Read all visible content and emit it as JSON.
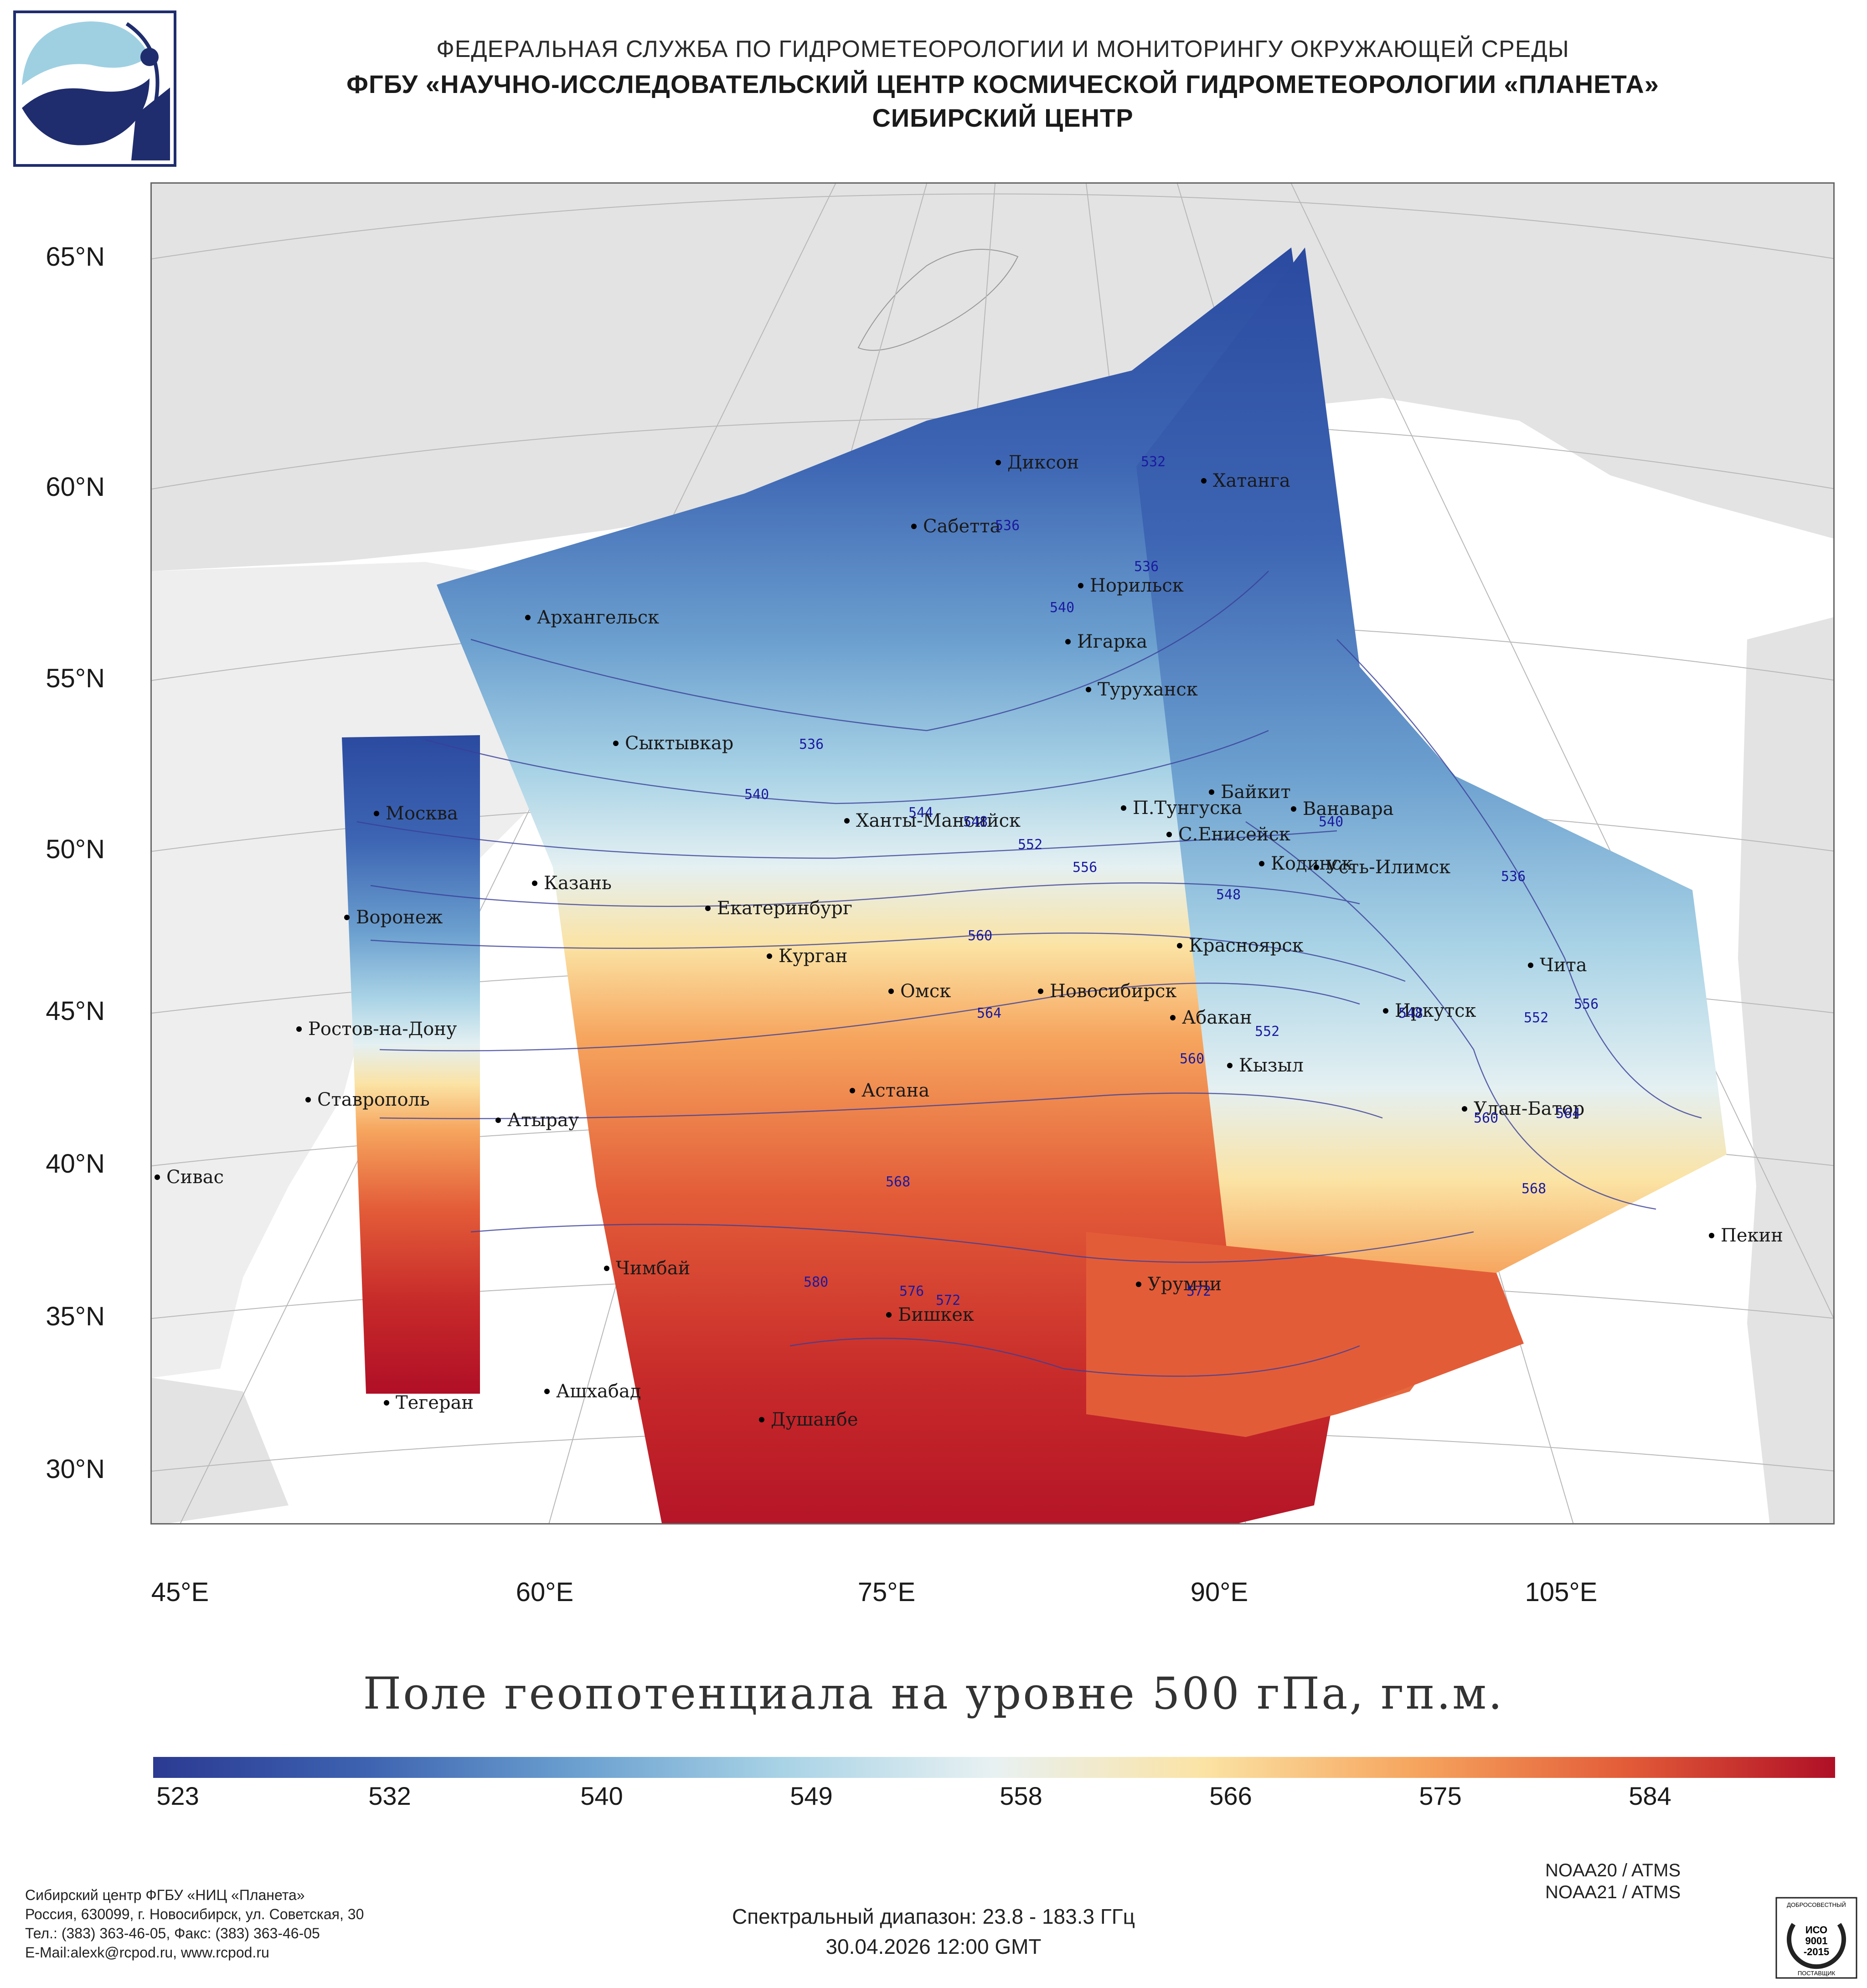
{
  "header": {
    "line1": "ФЕДЕРАЛЬНАЯ СЛУЖБА ПО ГИДРОМЕТЕОРОЛОГИИ И МОНИТОРИНГУ ОКРУЖАЮЩЕЙ СРЕДЫ",
    "line2": "ФГБУ «НАУЧНО-ИССЛЕДОВАТЕЛЬСКИЙ ЦЕНТР КОСМИЧЕСКОЙ ГИДРОМЕТЕОРОЛОГИИ «ПЛАНЕТА»",
    "line3": "СИБИРСКИЙ ЦЕНТР"
  },
  "map": {
    "lat_labels": [
      "65°N",
      "60°N",
      "55°N",
      "50°N",
      "45°N",
      "40°N",
      "35°N",
      "30°N"
    ],
    "lon_labels": [
      "45°E",
      "60°E",
      "75°E",
      "90°E",
      "105°E"
    ],
    "cities": [
      {
        "name": "Диксон"
      },
      {
        "name": "Хатанга"
      },
      {
        "name": "Сабетта"
      },
      {
        "name": "Норильск"
      },
      {
        "name": "Игарка"
      },
      {
        "name": "Туруханск"
      },
      {
        "name": "Архангельск"
      },
      {
        "name": "Сыктывкар"
      },
      {
        "name": "Москва"
      },
      {
        "name": "Ханты-Мансийск"
      },
      {
        "name": "Байкит"
      },
      {
        "name": "П.Тунгуска"
      },
      {
        "name": "Ванавара"
      },
      {
        "name": "С.Енисейск"
      },
      {
        "name": "Кодинск"
      },
      {
        "name": "Усть-Илимск"
      },
      {
        "name": "Казань"
      },
      {
        "name": "Екатеринбург"
      },
      {
        "name": "Воронеж"
      },
      {
        "name": "Курган"
      },
      {
        "name": "Красноярск"
      },
      {
        "name": "Омск"
      },
      {
        "name": "Новосибирск"
      },
      {
        "name": "Абакан"
      },
      {
        "name": "Иркутск"
      },
      {
        "name": "Чита"
      },
      {
        "name": "Ростов-на-Дону"
      },
      {
        "name": "Кызыл"
      },
      {
        "name": "Ставрополь"
      },
      {
        "name": "Астана"
      },
      {
        "name": "Атырау"
      },
      {
        "name": "Улан-Батор"
      },
      {
        "name": "Сивас"
      },
      {
        "name": "Пекин"
      },
      {
        "name": "Чимбай"
      },
      {
        "name": "Урумчи"
      },
      {
        "name": "Бишкек"
      },
      {
        "name": "Ашхабад"
      },
      {
        "name": "Тегеран"
      },
      {
        "name": "Душанбе"
      }
    ],
    "isolines": [
      "532",
      "536",
      "536",
      "540",
      "536",
      "540",
      "544",
      "548",
      "552",
      "556",
      "560",
      "564",
      "560",
      "548",
      "552",
      "536",
      "540",
      "548",
      "552",
      "556",
      "560",
      "564",
      "568",
      "568",
      "572",
      "576",
      "580",
      "572"
    ]
  },
  "title": "Поле геопотенциала на уровне 500 гПа, гп.м.",
  "colorbar": {
    "min": 523,
    "max": 590,
    "labels": [
      "523",
      "532",
      "540",
      "549",
      "558",
      "566",
      "575",
      "584"
    ],
    "colors": [
      "#2b3a92",
      "#3d62b0",
      "#6a9fcf",
      "#a9d3e6",
      "#e8f1f2",
      "#fbe3a4",
      "#f6a55e",
      "#e35c38",
      "#b00f26"
    ]
  },
  "footer": {
    "address_lines": [
      "Сибирский центр ФГБУ «НИЦ «Планета»",
      "Россия, 630099, г. Новосибирск, ул. Советская, 30",
      "Тел.: (383) 363-46-05, Факс: (383) 363-46-05",
      "E-Mail:alexk@rcpod.ru, www.rcpod.ru"
    ],
    "satellites": [
      "NOAA20 / ATMS",
      "NOAA21 / ATMS"
    ],
    "spectral": "Спектральный диапазон: 23.8 - 183.3 ГГц",
    "datetime": "30.04.2026 12:00 GMT",
    "iso_badge": {
      "top": "ДОБРОСОВЕСТНЫЙ",
      "mid1": "ИСО",
      "mid2": "9001",
      "mid3": "-2015",
      "bottom": "ПОСТАВЩИК"
    }
  }
}
